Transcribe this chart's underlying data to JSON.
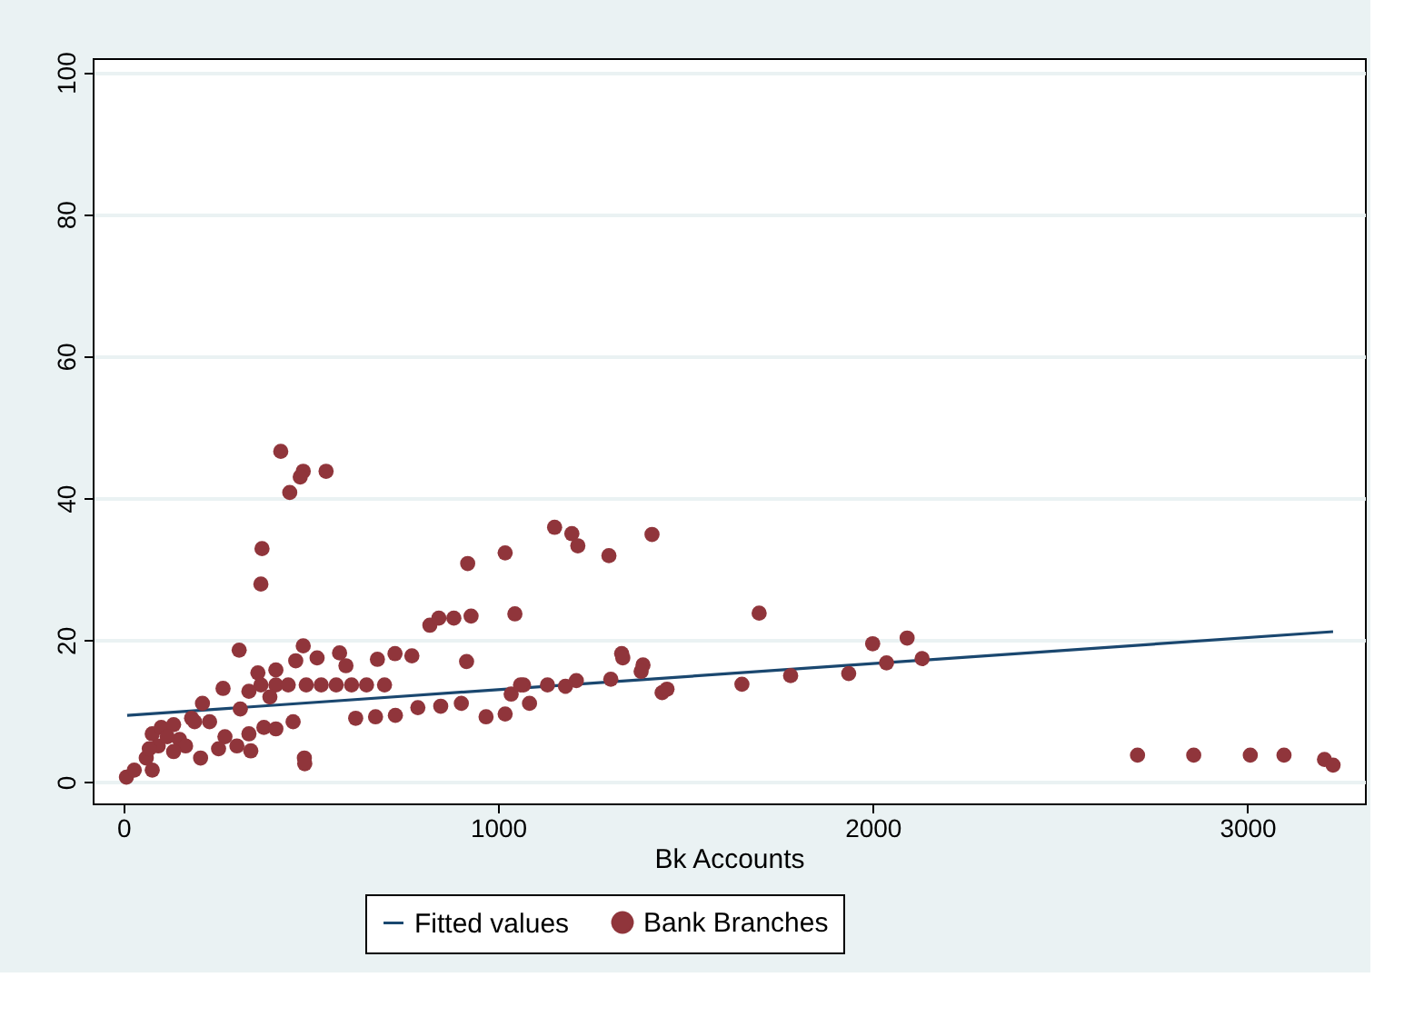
{
  "chart_data": {
    "type": "scatter",
    "xlabel": "Bk Accounts",
    "xlim": [
      -82,
      3314
    ],
    "xticks": [
      0,
      1000,
      2000,
      3000
    ],
    "ylim": [
      -3,
      102
    ],
    "yticks": [
      0,
      20,
      40,
      60,
      80,
      100
    ],
    "grid": "y",
    "legend": "bottom",
    "series": [
      {
        "name": "Fitted values",
        "type": "line",
        "color": "#1a476f",
        "line_style": "solid",
        "x": [
          10,
          3229
        ],
        "values": [
          9.4,
          21.2
        ]
      },
      {
        "name": "Bank Branches",
        "marker": "circle",
        "color": "#90353b",
        "x": [
          420,
          480,
          472,
          541,
          444,
          370,
          367,
          309,
          266,
          480,
          460,
          517,
          577,
          594,
          678,
          725,
          770,
          818,
          842,
          882,
          928,
          919,
          1019,
          1045,
          916,
          1151,
          367,
          407,
          440,
          488,
          528,
          568,
          609,
          649,
          697,
          359,
          407,
          335,
          391,
          312,
          211,
          230,
          182,
          453,
          375,
          407,
          620,
          673,
          726,
          786,
          847,
          902,
          968,
          1019,
          1035,
          1068,
          1132,
          1084,
          483,
          484,
          8,
          29,
          61,
          77,
          77,
          101,
          134,
          93,
          150,
          190,
          166,
          206,
          271,
          254,
          303,
          340,
          335,
          134,
          69,
          117,
          1197,
          1213,
          1296,
          1411,
          1697,
          1330,
          1333,
          1387,
          1382,
          1438,
          1451,
          1301,
          1209,
          1180,
          1060,
          1651,
          1781,
          1936,
          2000,
          2092,
          2037,
          2132,
          2707,
          2857,
          3008,
          3098,
          3206,
          3229
        ],
        "values": [
          46.6,
          43.8,
          43.0,
          43.8,
          40.8,
          32.9,
          27.9,
          18.6,
          13.2,
          19.2,
          17.1,
          17.5,
          18.2,
          16.4,
          17.3,
          18.1,
          17.8,
          22.1,
          23.1,
          23.1,
          23.4,
          30.8,
          32.3,
          23.7,
          17.0,
          35.9,
          13.7,
          13.7,
          13.7,
          13.7,
          13.7,
          13.7,
          13.7,
          13.7,
          13.7,
          15.4,
          15.8,
          12.8,
          12.0,
          10.3,
          11.1,
          8.5,
          9.0,
          8.5,
          7.7,
          7.5,
          9.0,
          9.2,
          9.4,
          10.5,
          10.7,
          11.1,
          9.2,
          9.6,
          12.4,
          13.7,
          13.7,
          11.1,
          3.4,
          2.6,
          0.7,
          1.7,
          3.4,
          6.8,
          1.7,
          7.7,
          8.1,
          5.1,
          6.0,
          8.5,
          5.1,
          3.4,
          6.4,
          4.7,
          5.1,
          4.4,
          6.8,
          4.3,
          4.7,
          6.4,
          35.0,
          33.3,
          31.9,
          34.9,
          23.8,
          18.1,
          17.5,
          16.5,
          15.6,
          12.6,
          13.1,
          14.5,
          14.3,
          13.5,
          13.7,
          13.8,
          15.0,
          15.3,
          19.5,
          20.3,
          16.8,
          17.4,
          3.8,
          3.8,
          3.8,
          3.8,
          3.2,
          2.4
        ]
      }
    ]
  }
}
